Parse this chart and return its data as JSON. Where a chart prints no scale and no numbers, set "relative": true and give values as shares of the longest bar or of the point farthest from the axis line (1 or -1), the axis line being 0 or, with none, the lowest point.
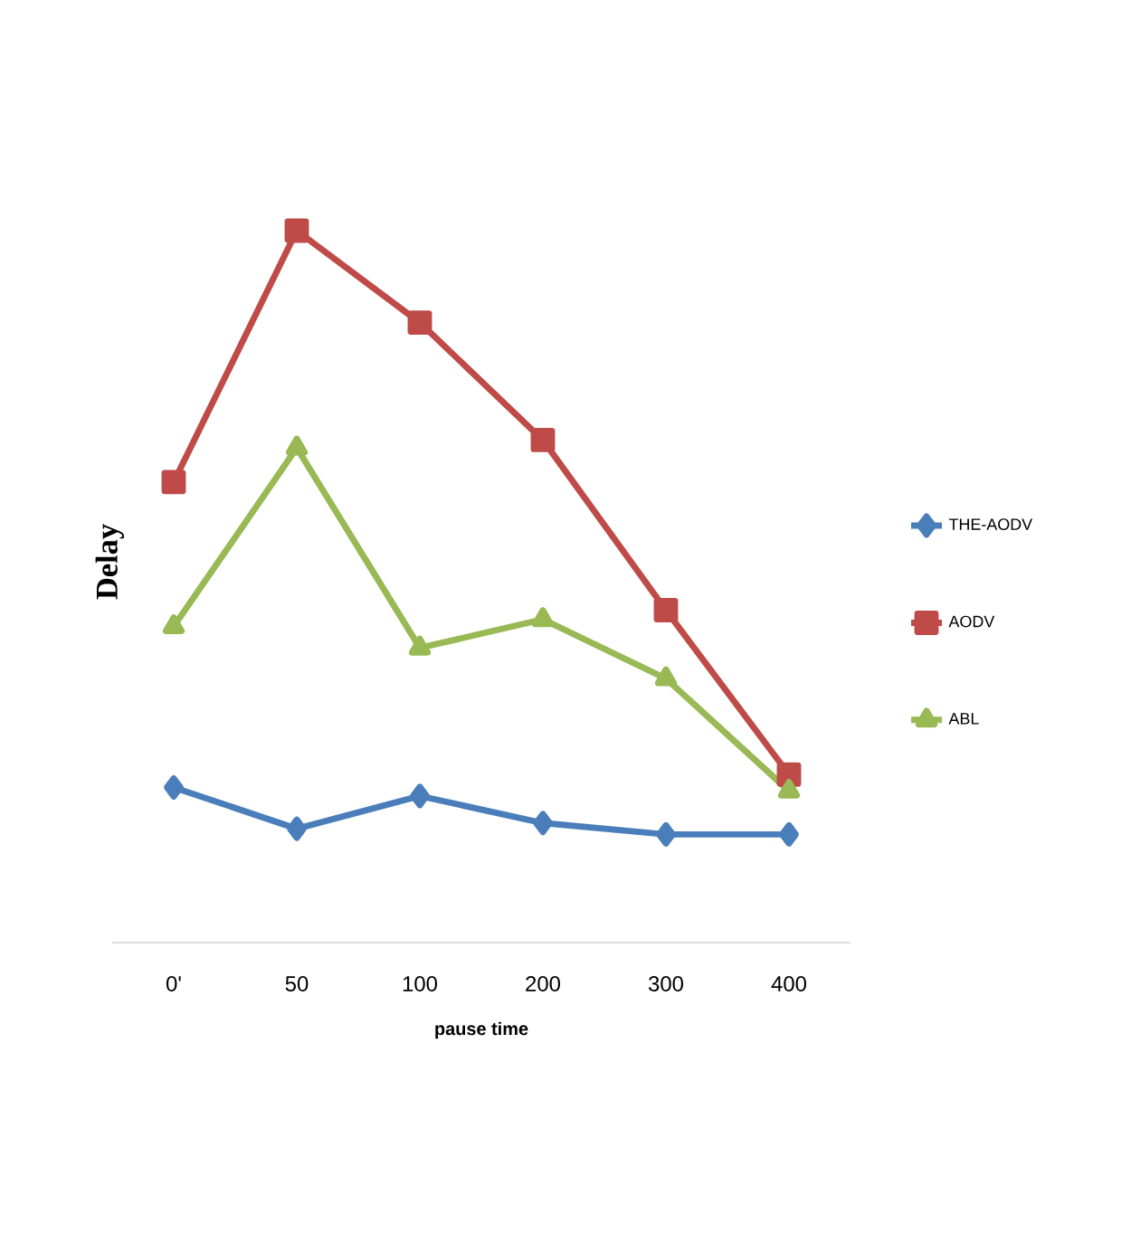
{
  "chart_data": {
    "type": "line",
    "relative": true,
    "xlabel": "pause time",
    "ylabel": "Delay",
    "categories": [
      "0'",
      "50",
      "100",
      "200",
      "300",
      "400"
    ],
    "series": [
      {
        "name": "THE-AODV",
        "color": "#4a7ebb",
        "marker": "diamond",
        "values": [
          0.218,
          0.16,
          0.206,
          0.168,
          0.152,
          0.152
        ]
      },
      {
        "name": "AODV",
        "color": "#be4b48",
        "marker": "square",
        "values": [
          0.647,
          1,
          0.871,
          0.706,
          0.467,
          0.236
        ]
      },
      {
        "name": "ABL",
        "color": "#98b954",
        "marker": "triangle",
        "values": [
          0.444,
          0.695,
          0.414,
          0.454,
          0.371,
          0.213
        ]
      }
    ],
    "legend": "right",
    "line_style": "solid"
  }
}
